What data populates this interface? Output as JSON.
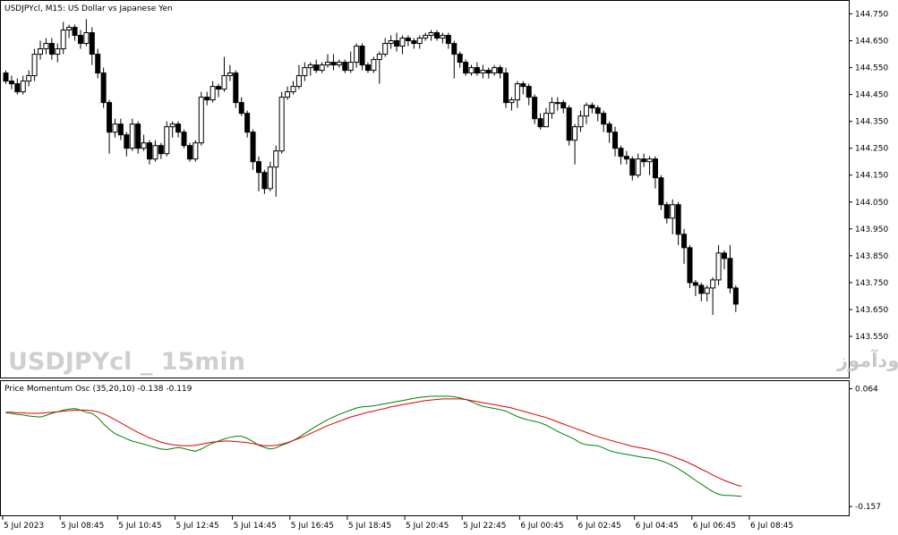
{
  "header": {
    "chart_title": "USDJPYcl, M15:  US Dollar vs Japanese Yen",
    "indicator_label": "Price Momentum Osc (35,20,10) -0.138 -0.119"
  },
  "watermark": {
    "symbol_text": "USDJPYcl _ 15min",
    "site_text": "انتشار در سایت سودآموز"
  },
  "colors": {
    "bull_body": "#ffffff",
    "bear_body": "#000000",
    "osc_main": "#008000",
    "osc_signal": "#e00000",
    "grid_frame": "#000000"
  },
  "chart_data": [
    {
      "type": "candlestick",
      "symbol": "USDJPYcl",
      "timeframe": "M15",
      "title": "USDJPYcl, M15:  US Dollar vs Japanese Yen",
      "ylim": [
        143.5,
        144.775
      ],
      "y_tick_labels": [
        "144.750",
        "144.650",
        "144.550",
        "144.450",
        "144.350",
        "144.250",
        "144.150",
        "144.050",
        "143.950",
        "143.850",
        "143.750",
        "143.650",
        "143.550"
      ],
      "x_tick_labels": [
        "5 Jul 2023",
        "5 Jul 08:45",
        "5 Jul 10:45",
        "5 Jul 12:45",
        "5 Jul 14:45",
        "5 Jul 16:45",
        "5 Jul 18:45",
        "5 Jul 20:45",
        "5 Jul 22:45",
        "6 Jul 00:45",
        "6 Jul 02:45",
        "6 Jul 04:45",
        "6 Jul 06:45",
        "6 Jul 08:45"
      ],
      "candles": [
        [
          144.53,
          144.5,
          144.54,
          144.49
        ],
        [
          144.5,
          144.49,
          144.52,
          144.47
        ],
        [
          144.49,
          144.46,
          144.51,
          144.45
        ],
        [
          144.46,
          144.5,
          144.52,
          144.45
        ],
        [
          144.5,
          144.52,
          144.54,
          144.48
        ],
        [
          144.52,
          144.6,
          144.62,
          144.5
        ],
        [
          144.6,
          144.62,
          144.65,
          144.58
        ],
        [
          144.62,
          144.64,
          144.66,
          144.6
        ],
        [
          144.64,
          144.6,
          144.66,
          144.58
        ],
        [
          144.6,
          144.62,
          144.64,
          144.57
        ],
        [
          144.62,
          144.69,
          144.72,
          144.6
        ],
        [
          144.69,
          144.7,
          144.71,
          144.66
        ],
        [
          144.7,
          144.67,
          144.71,
          144.65
        ],
        [
          144.67,
          144.64,
          144.69,
          144.62
        ],
        [
          144.64,
          144.68,
          144.73,
          144.63
        ],
        [
          144.68,
          144.6,
          144.7,
          144.56
        ],
        [
          144.6,
          144.53,
          144.62,
          144.51
        ],
        [
          144.53,
          144.42,
          144.55,
          144.4
        ],
        [
          144.42,
          144.31,
          144.43,
          144.23
        ],
        [
          144.31,
          144.34,
          144.36,
          144.29
        ],
        [
          144.34,
          144.3,
          144.36,
          144.28
        ],
        [
          144.3,
          144.25,
          144.31,
          144.22
        ],
        [
          144.25,
          144.34,
          144.36,
          144.24
        ],
        [
          144.34,
          144.25,
          144.35,
          144.23
        ],
        [
          144.25,
          144.27,
          144.3,
          144.24
        ],
        [
          144.27,
          144.21,
          144.28,
          144.19
        ],
        [
          144.21,
          144.26,
          144.28,
          144.2
        ],
        [
          144.26,
          144.23,
          144.27,
          144.21
        ],
        [
          144.23,
          144.33,
          144.35,
          144.22
        ],
        [
          144.33,
          144.34,
          144.35,
          144.29
        ],
        [
          144.34,
          144.31,
          144.35,
          144.29
        ],
        [
          144.31,
          144.26,
          144.32,
          144.25
        ],
        [
          144.26,
          144.21,
          144.27,
          144.2
        ],
        [
          144.21,
          144.27,
          144.28,
          144.2
        ],
        [
          144.27,
          144.44,
          144.46,
          144.26
        ],
        [
          144.44,
          144.43,
          144.46,
          144.41
        ],
        [
          144.43,
          144.48,
          144.5,
          144.42
        ],
        [
          144.48,
          144.47,
          144.49,
          144.44
        ],
        [
          144.47,
          144.52,
          144.59,
          144.46
        ],
        [
          144.52,
          144.53,
          144.56,
          144.5
        ],
        [
          144.53,
          144.42,
          144.54,
          144.4
        ],
        [
          144.42,
          144.38,
          144.44,
          144.37
        ],
        [
          144.38,
          144.31,
          144.39,
          144.29
        ],
        [
          144.31,
          144.2,
          144.32,
          144.17
        ],
        [
          144.2,
          144.16,
          144.22,
          144.09
        ],
        [
          144.16,
          144.1,
          144.17,
          144.08
        ],
        [
          144.1,
          144.18,
          144.2,
          144.09
        ],
        [
          144.18,
          144.24,
          144.26,
          144.07
        ],
        [
          144.24,
          144.44,
          144.46,
          144.23
        ],
        [
          144.44,
          144.46,
          144.48,
          144.43
        ],
        [
          144.46,
          144.48,
          144.5,
          144.45
        ],
        [
          144.48,
          144.52,
          144.56,
          144.47
        ],
        [
          144.52,
          144.55,
          144.57,
          144.5
        ],
        [
          144.55,
          144.56,
          144.57,
          144.52
        ],
        [
          144.56,
          144.54,
          144.58,
          144.53
        ],
        [
          144.54,
          144.56,
          144.57,
          144.53
        ],
        [
          144.56,
          144.57,
          144.6,
          144.55
        ],
        [
          144.57,
          144.56,
          144.6,
          144.54
        ],
        [
          144.56,
          144.57,
          144.58,
          144.55
        ],
        [
          144.57,
          144.54,
          144.58,
          144.53
        ],
        [
          144.54,
          144.57,
          144.61,
          144.53
        ],
        [
          144.57,
          144.63,
          144.64,
          144.55
        ],
        [
          144.63,
          144.56,
          144.64,
          144.54
        ],
        [
          144.56,
          144.54,
          144.57,
          144.53
        ],
        [
          144.54,
          144.58,
          144.59,
          144.53
        ],
        [
          144.58,
          144.6,
          144.61,
          144.49
        ],
        [
          144.6,
          144.64,
          144.66,
          144.59
        ],
        [
          144.64,
          144.65,
          144.67,
          144.62
        ],
        [
          144.65,
          144.63,
          144.68,
          144.61
        ],
        [
          144.63,
          144.66,
          144.67,
          144.6
        ],
        [
          144.66,
          144.65,
          144.67,
          144.63
        ],
        [
          144.65,
          144.64,
          144.66,
          144.62
        ],
        [
          144.64,
          144.66,
          144.67,
          144.62
        ],
        [
          144.66,
          144.67,
          144.68,
          144.65
        ],
        [
          144.67,
          144.68,
          144.69,
          144.65
        ],
        [
          144.68,
          144.66,
          144.69,
          144.65
        ],
        [
          144.66,
          144.67,
          144.68,
          144.64
        ],
        [
          144.67,
          144.64,
          144.68,
          144.62
        ],
        [
          144.64,
          144.6,
          144.65,
          144.51
        ],
        [
          144.6,
          144.57,
          144.61,
          144.55
        ],
        [
          144.57,
          144.53,
          144.58,
          144.52
        ],
        [
          144.53,
          144.55,
          144.56,
          144.52
        ],
        [
          144.55,
          144.53,
          144.57,
          144.52
        ],
        [
          144.53,
          144.54,
          144.56,
          144.51
        ],
        [
          144.54,
          144.53,
          144.55,
          144.51
        ],
        [
          144.53,
          144.55,
          144.56,
          144.52
        ],
        [
          144.55,
          144.53,
          144.56,
          144.51
        ],
        [
          144.53,
          144.42,
          144.55,
          144.4
        ],
        [
          144.42,
          144.43,
          144.44,
          144.39
        ],
        [
          144.43,
          144.49,
          144.5,
          144.4
        ],
        [
          144.49,
          144.48,
          144.5,
          144.45
        ],
        [
          144.48,
          144.44,
          144.49,
          144.41
        ],
        [
          144.44,
          144.36,
          144.45,
          144.34
        ],
        [
          144.36,
          144.33,
          144.38,
          144.32
        ],
        [
          144.33,
          144.38,
          144.4,
          144.35
        ],
        [
          144.38,
          144.42,
          144.44,
          144.36
        ],
        [
          144.42,
          144.42,
          144.44,
          144.39
        ],
        [
          144.42,
          144.4,
          144.43,
          144.38
        ],
        [
          144.4,
          144.28,
          144.41,
          144.26
        ],
        [
          144.28,
          144.33,
          144.34,
          144.19
        ],
        [
          144.33,
          144.37,
          144.39,
          144.31
        ],
        [
          144.37,
          144.41,
          144.42,
          144.34
        ],
        [
          144.41,
          144.4,
          144.42,
          144.38
        ],
        [
          144.4,
          144.38,
          144.41,
          144.35
        ],
        [
          144.38,
          144.34,
          144.39,
          144.31
        ],
        [
          144.34,
          144.31,
          144.35,
          144.27
        ],
        [
          144.31,
          144.25,
          144.33,
          144.22
        ],
        [
          144.25,
          144.22,
          144.26,
          144.19
        ],
        [
          144.22,
          144.21,
          144.24,
          144.19
        ],
        [
          144.21,
          144.15,
          144.22,
          144.13
        ],
        [
          144.15,
          144.21,
          144.23,
          144.14
        ],
        [
          144.21,
          144.2,
          144.23,
          144.18
        ],
        [
          144.2,
          144.21,
          144.22,
          144.15
        ],
        [
          144.21,
          144.14,
          144.22,
          144.1
        ],
        [
          144.14,
          144.04,
          144.15,
          144.02
        ],
        [
          144.04,
          143.99,
          144.05,
          143.97
        ],
        [
          143.99,
          144.04,
          144.06,
          143.93
        ],
        [
          144.04,
          143.93,
          144.05,
          143.89
        ],
        [
          143.93,
          143.88,
          143.95,
          143.82
        ],
        [
          143.88,
          143.75,
          143.89,
          143.73
        ],
        [
          143.75,
          143.74,
          143.76,
          143.7
        ],
        [
          143.74,
          143.71,
          143.75,
          143.68
        ],
        [
          143.71,
          143.73,
          143.74,
          143.68
        ],
        [
          143.73,
          143.76,
          143.77,
          143.63
        ],
        [
          143.76,
          143.86,
          143.89,
          143.74
        ],
        [
          143.86,
          143.84,
          143.87,
          143.8
        ],
        [
          143.84,
          143.73,
          143.89,
          143.71
        ],
        [
          143.73,
          143.67,
          143.74,
          143.64
        ]
      ]
    },
    {
      "type": "line",
      "title": "Price Momentum Osc (35,20,10) -0.138 -0.119",
      "ylim": [
        -0.165,
        0.07
      ],
      "y_tick_labels": [
        "0.064",
        "-0.157"
      ],
      "series": [
        {
          "color": "#008000",
          "values": [
            0.019,
            0.018,
            0.016,
            0.015,
            0.013,
            0.012,
            0.011,
            0.014,
            0.018,
            0.021,
            0.024,
            0.026,
            0.027,
            0.024,
            0.02,
            0.018,
            0.01,
            -0.002,
            -0.012,
            -0.02,
            -0.025,
            -0.03,
            -0.034,
            -0.037,
            -0.04,
            -0.043,
            -0.046,
            -0.049,
            -0.05,
            -0.048,
            -0.046,
            -0.048,
            -0.051,
            -0.053,
            -0.049,
            -0.043,
            -0.038,
            -0.034,
            -0.03,
            -0.027,
            -0.025,
            -0.025,
            -0.029,
            -0.035,
            -0.042,
            -0.046,
            -0.049,
            -0.047,
            -0.042,
            -0.038,
            -0.033,
            -0.027,
            -0.02,
            -0.013,
            -0.006,
            0.0,
            0.006,
            0.011,
            0.016,
            0.02,
            0.024,
            0.028,
            0.03,
            0.031,
            0.032,
            0.034,
            0.036,
            0.038,
            0.04,
            0.042,
            0.044,
            0.046,
            0.048,
            0.049,
            0.05,
            0.05,
            0.05,
            0.05,
            0.049,
            0.047,
            0.044,
            0.04,
            0.035,
            0.031,
            0.029,
            0.027,
            0.025,
            0.022,
            0.017,
            0.012,
            0.008,
            0.005,
            0.003,
            0.0,
            -0.004,
            -0.01,
            -0.016,
            -0.021,
            -0.026,
            -0.031,
            -0.038,
            -0.041,
            -0.042,
            -0.043,
            -0.047,
            -0.052,
            -0.055,
            -0.057,
            -0.059,
            -0.061,
            -0.063,
            -0.065,
            -0.066,
            -0.068,
            -0.071,
            -0.075,
            -0.08,
            -0.086,
            -0.093,
            -0.1,
            -0.108,
            -0.115,
            -0.122,
            -0.129,
            -0.134,
            -0.136,
            -0.136,
            -0.137,
            -0.138
          ]
        },
        {
          "color": "#e00000",
          "values": [
            0.02,
            0.02,
            0.019,
            0.019,
            0.018,
            0.018,
            0.018,
            0.019,
            0.02,
            0.021,
            0.022,
            0.023,
            0.024,
            0.024,
            0.024,
            0.023,
            0.021,
            0.017,
            0.012,
            0.006,
            0.0,
            -0.006,
            -0.012,
            -0.018,
            -0.023,
            -0.028,
            -0.032,
            -0.036,
            -0.039,
            -0.041,
            -0.042,
            -0.043,
            -0.043,
            -0.042,
            -0.04,
            -0.038,
            -0.036,
            -0.035,
            -0.034,
            -0.034,
            -0.035,
            -0.036,
            -0.037,
            -0.039,
            -0.041,
            -0.043,
            -0.043,
            -0.042,
            -0.04,
            -0.037,
            -0.033,
            -0.029,
            -0.025,
            -0.02,
            -0.015,
            -0.01,
            -0.005,
            -0.001,
            0.003,
            0.007,
            0.011,
            0.014,
            0.017,
            0.02,
            0.022,
            0.025,
            0.027,
            0.03,
            0.032,
            0.034,
            0.036,
            0.038,
            0.04,
            0.042,
            0.043,
            0.044,
            0.045,
            0.045,
            0.045,
            0.045,
            0.044,
            0.042,
            0.04,
            0.038,
            0.036,
            0.034,
            0.032,
            0.03,
            0.028,
            0.025,
            0.022,
            0.019,
            0.016,
            0.013,
            0.01,
            0.006,
            0.002,
            -0.002,
            -0.006,
            -0.01,
            -0.014,
            -0.018,
            -0.022,
            -0.026,
            -0.029,
            -0.032,
            -0.035,
            -0.038,
            -0.041,
            -0.044,
            -0.046,
            -0.048,
            -0.05,
            -0.053,
            -0.056,
            -0.059,
            -0.063,
            -0.067,
            -0.071,
            -0.076,
            -0.081,
            -0.087,
            -0.092,
            -0.098,
            -0.103,
            -0.108,
            -0.112,
            -0.116,
            -0.119
          ]
        }
      ]
    }
  ]
}
